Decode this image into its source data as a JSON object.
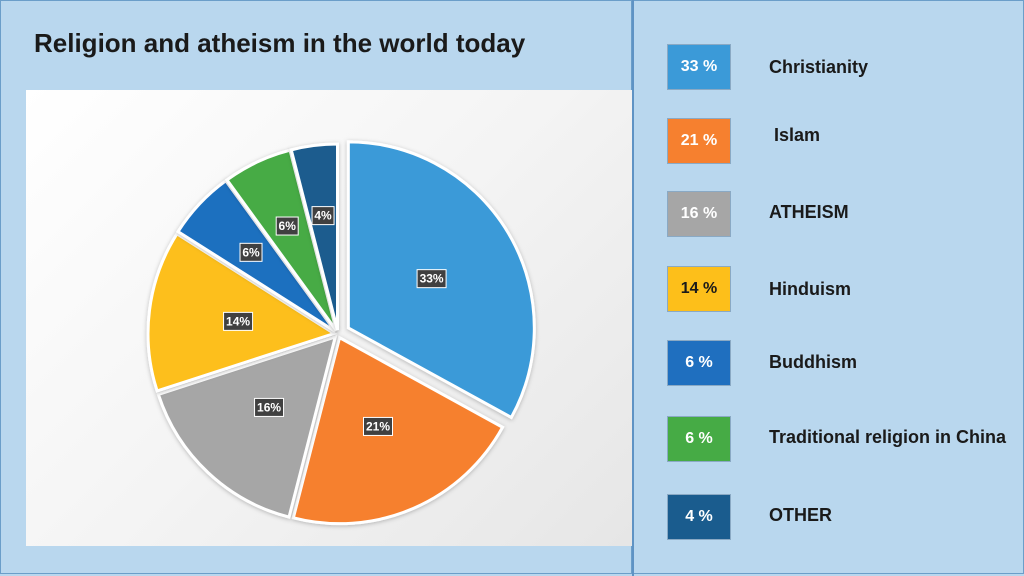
{
  "chart_data": {
    "type": "pie",
    "title": "Religion and atheism in the world today",
    "slices": [
      {
        "label": "Christianity",
        "value": 33,
        "data_label": "33%",
        "legend_value": "33 %",
        "color": "#3b9ad8"
      },
      {
        "label": "Islam",
        "value": 21,
        "data_label": "21%",
        "legend_value": "21 %",
        "color": "#f6802f"
      },
      {
        "label": "ATHEISM",
        "value": 16,
        "data_label": "16%",
        "legend_value": "16 %",
        "color": "#a6a6a6"
      },
      {
        "label": "Hinduism",
        "value": 14,
        "data_label": "14%",
        "legend_value": "14 %",
        "color": "#fdbf1a"
      },
      {
        "label": "Buddhism",
        "value": 6,
        "data_label": "6%",
        "legend_value": "6 %",
        "color": "#1f6fbf"
      },
      {
        "label": "Traditional religion in China",
        "value": 6,
        "data_label": "6%",
        "legend_value": "6 %",
        "color": "#46ab45"
      },
      {
        "label": "OTHER",
        "value": 4,
        "data_label": "4%",
        "legend_value": "4 %",
        "color": "#1a5c8e"
      }
    ],
    "legend_text_colors": [
      "#ffffff",
      "#ffffff",
      "#ffffff",
      "#1a1a1a",
      "#ffffff",
      "#ffffff",
      "#ffffff"
    ],
    "exploded": "Christianity",
    "legend_position": "right"
  }
}
